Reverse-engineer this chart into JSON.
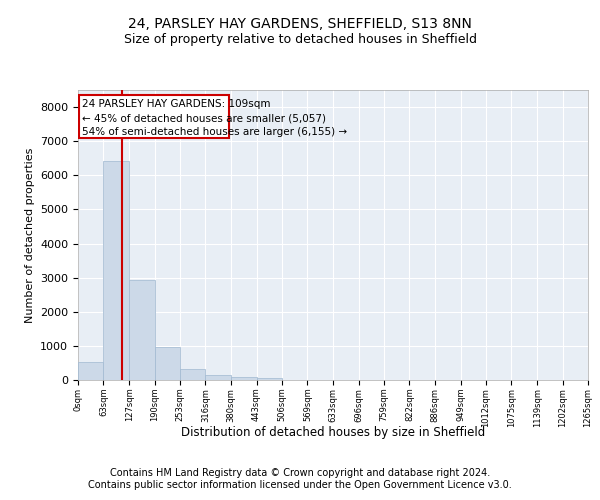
{
  "title_line1": "24, PARSLEY HAY GARDENS, SHEFFIELD, S13 8NN",
  "title_line2": "Size of property relative to detached houses in Sheffield",
  "xlabel": "Distribution of detached houses by size in Sheffield",
  "ylabel": "Number of detached properties",
  "bar_color": "#ccd9e8",
  "bar_edgecolor": "#a0b8d0",
  "background_color": "#e8eef5",
  "grid_color": "#ffffff",
  "vline_color": "#cc0000",
  "vline_x": 109,
  "annotation_title": "24 PARSLEY HAY GARDENS: 109sqm",
  "annotation_line1": "← 45% of detached houses are smaller (5,057)",
  "annotation_line2": "54% of semi-detached houses are larger (6,155) →",
  "annotation_box_color": "#cc0000",
  "bin_edges": [
    0,
    63,
    127,
    190,
    253,
    316,
    380,
    443,
    506,
    569,
    633,
    696,
    759,
    822,
    886,
    949,
    1012,
    1075,
    1139,
    1202,
    1265
  ],
  "bin_labels": [
    "0sqm",
    "63sqm",
    "127sqm",
    "190sqm",
    "253sqm",
    "316sqm",
    "380sqm",
    "443sqm",
    "506sqm",
    "569sqm",
    "633sqm",
    "696sqm",
    "759sqm",
    "822sqm",
    "886sqm",
    "949sqm",
    "1012sqm",
    "1075sqm",
    "1139sqm",
    "1202sqm",
    "1265sqm"
  ],
  "bar_heights": [
    530,
    6430,
    2930,
    980,
    330,
    150,
    100,
    65,
    0,
    0,
    0,
    0,
    0,
    0,
    0,
    0,
    0,
    0,
    0,
    0
  ],
  "ylim": [
    0,
    8500
  ],
  "yticks": [
    0,
    1000,
    2000,
    3000,
    4000,
    5000,
    6000,
    7000,
    8000
  ],
  "footer_line1": "Contains HM Land Registry data © Crown copyright and database right 2024.",
  "footer_line2": "Contains public sector information licensed under the Open Government Licence v3.0.",
  "title_fontsize": 10,
  "subtitle_fontsize": 9,
  "footer_fontsize": 7,
  "annotation_fontsize": 7.5,
  "ylabel_fontsize": 8,
  "xlabel_fontsize": 8.5,
  "ytick_fontsize": 8,
  "xtick_fontsize": 6
}
